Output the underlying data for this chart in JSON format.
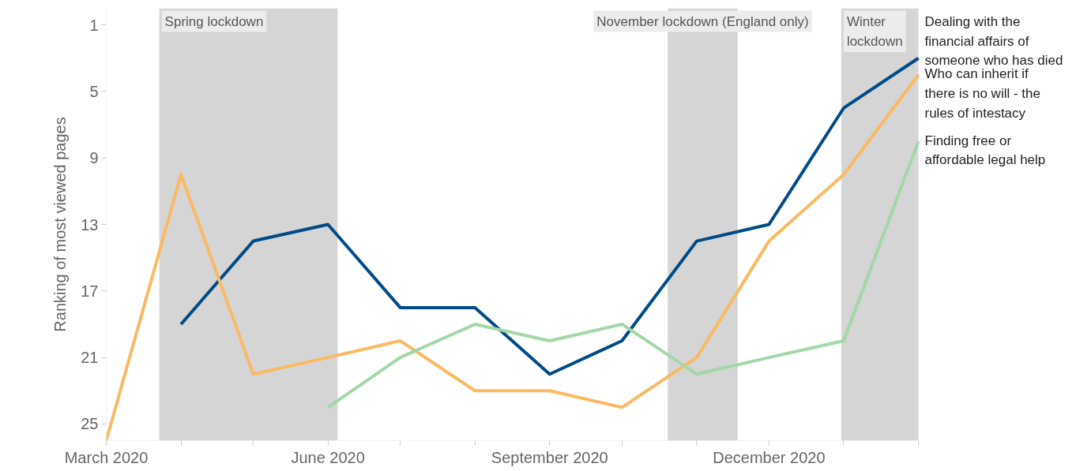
{
  "chart_data": {
    "type": "line",
    "ylabel": "Ranking of most viewed pages",
    "x": [
      "2020-03",
      "2020-04",
      "2020-05",
      "2020-06",
      "2020-07",
      "2020-08",
      "2020-09",
      "2020-10",
      "2020-11",
      "2020-12",
      "2021-01",
      "2021-02"
    ],
    "series": [
      {
        "name": "Dealing with the financial affairs of someone who has died",
        "color": "#004b87",
        "values": [
          null,
          19,
          14,
          13,
          18,
          18,
          22,
          20,
          14,
          13,
          6,
          3
        ]
      },
      {
        "name": "Who can inherit if there is no will - the rules of intestacy",
        "color": "#fbb962",
        "values": [
          26,
          10,
          22,
          21,
          20,
          23,
          23,
          24,
          21,
          14,
          10,
          4
        ]
      },
      {
        "name": "Finding free or affordable legal help",
        "color": "#a3d7a8",
        "values": [
          null,
          null,
          null,
          24,
          21,
          19,
          20,
          19,
          22,
          21,
          20,
          8
        ]
      }
    ],
    "xlim": [
      "2020-03",
      "2021-02"
    ],
    "xticks": [
      {
        "value": "2020-03",
        "label": "March 2020"
      },
      {
        "value": "2020-04",
        "label": null
      },
      {
        "value": "2020-05",
        "label": null
      },
      {
        "value": "2020-06",
        "label": "June 2020"
      },
      {
        "value": "2020-07",
        "label": null
      },
      {
        "value": "2020-08",
        "label": null
      },
      {
        "value": "2020-09",
        "label": "September 2020"
      },
      {
        "value": "2020-10",
        "label": null
      },
      {
        "value": "2020-11",
        "label": null
      },
      {
        "value": "2020-12",
        "label": "December 2020"
      },
      {
        "value": "2021-01",
        "label": null
      },
      {
        "value": "2021-02",
        "label": null
      }
    ],
    "ylim": [
      26,
      0
    ],
    "yticks": [
      1,
      5,
      9,
      13,
      17,
      21,
      25
    ],
    "bands": [
      {
        "axis": "x",
        "from": "2020-03-23",
        "to": "2020-06-05",
        "label": "Spring lockdown",
        "color": "#d5d5d5"
      },
      {
        "axis": "x",
        "from": "2020-10-20",
        "to": "2020-11-18",
        "label": "November lockdown (England only)",
        "color": "#d5d5d5"
      },
      {
        "axis": "x",
        "from": "2020-12-31",
        "to": "2021-02-01",
        "label": "Winter lockdown",
        "color": "#d5d5d5"
      }
    ],
    "grid": false,
    "legend": false,
    "marker": "none",
    "line_style": "solid"
  }
}
